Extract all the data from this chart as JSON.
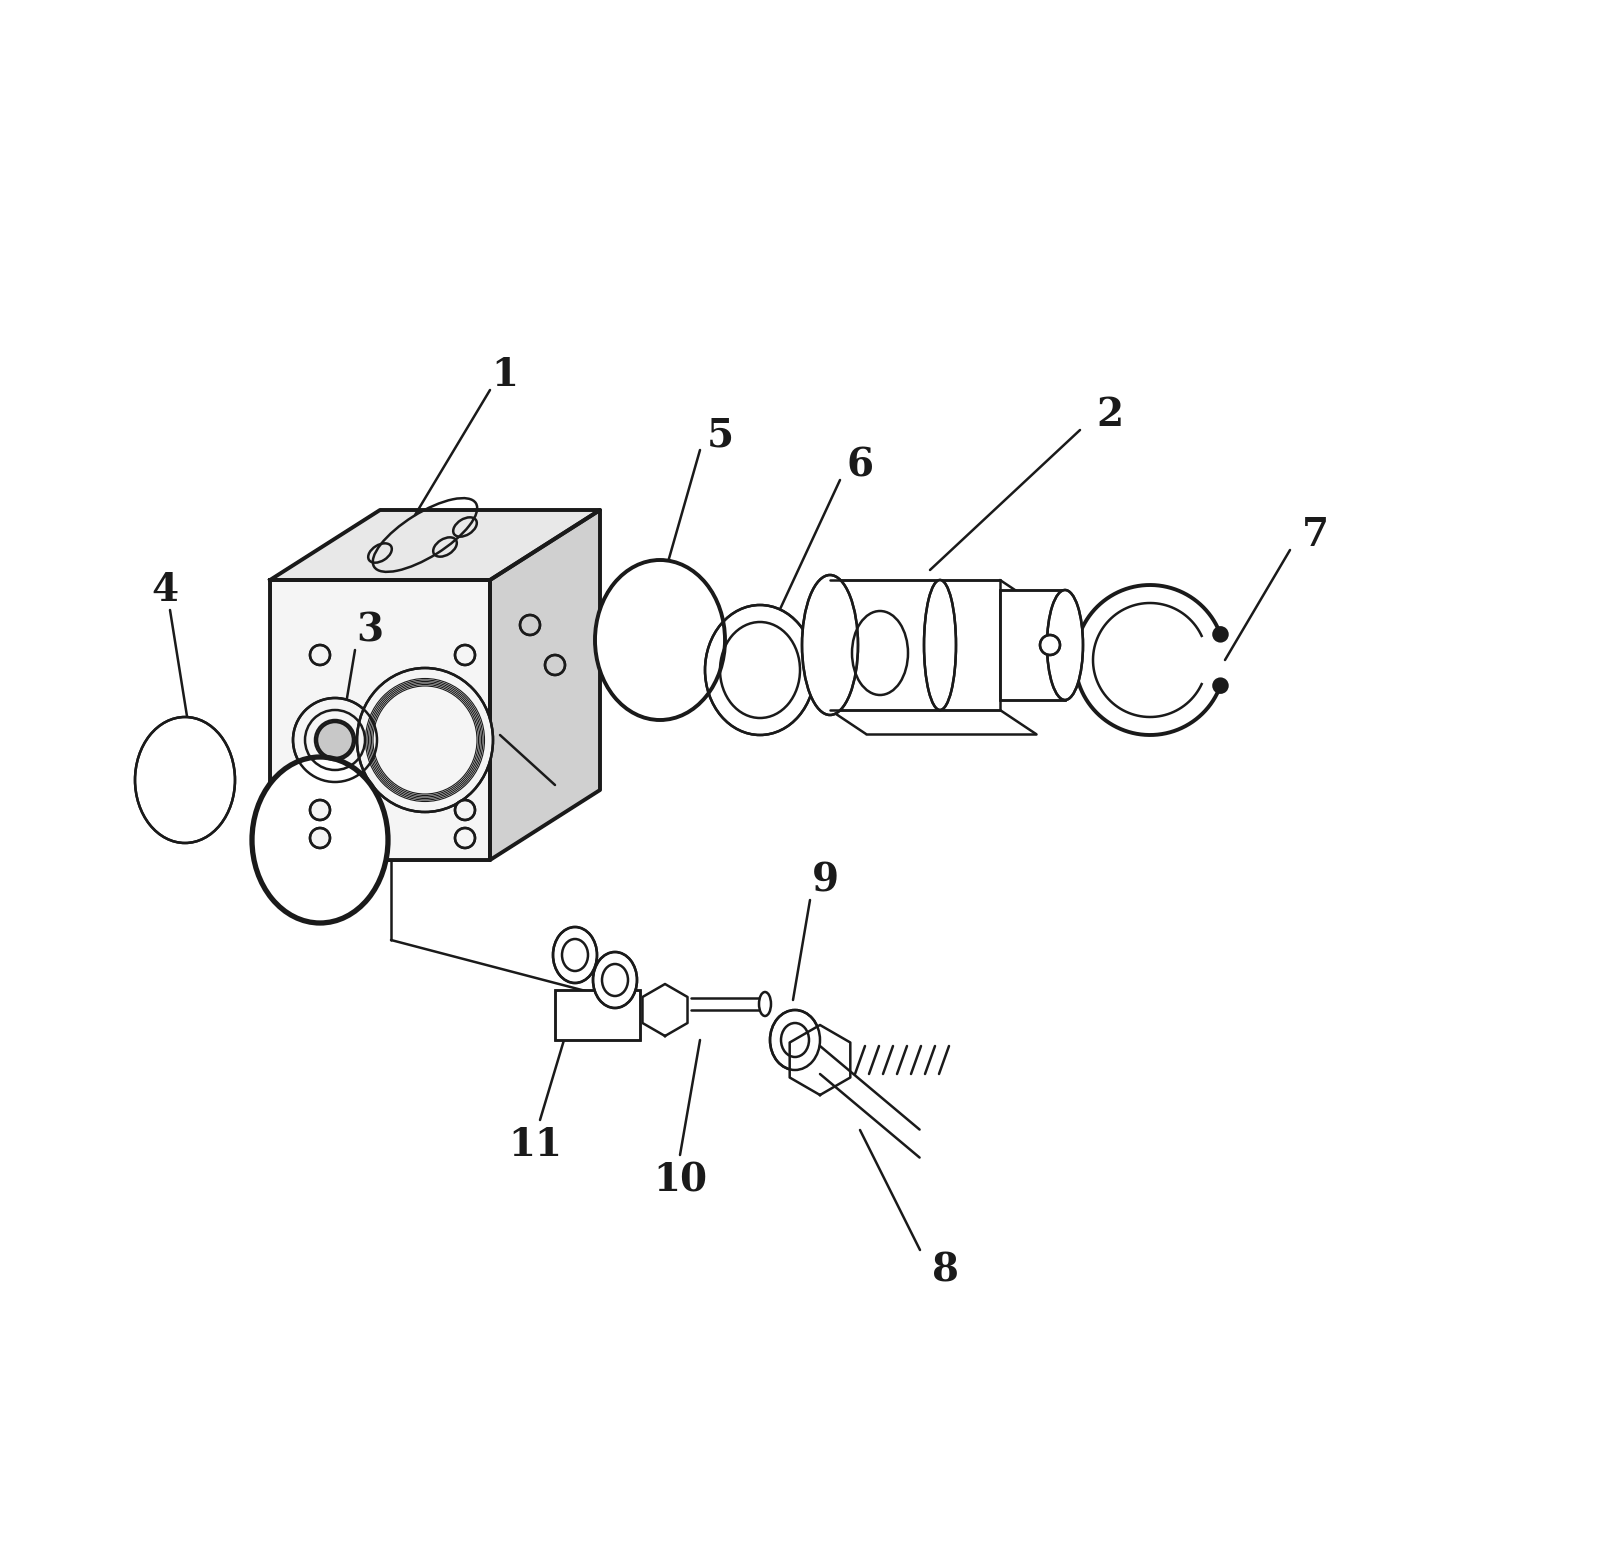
{
  "background_color": "#ffffff",
  "line_color": "#1a1a1a",
  "lw": 1.8,
  "lw_thick": 2.8,
  "fig_width": 16.19,
  "fig_height": 15.65
}
